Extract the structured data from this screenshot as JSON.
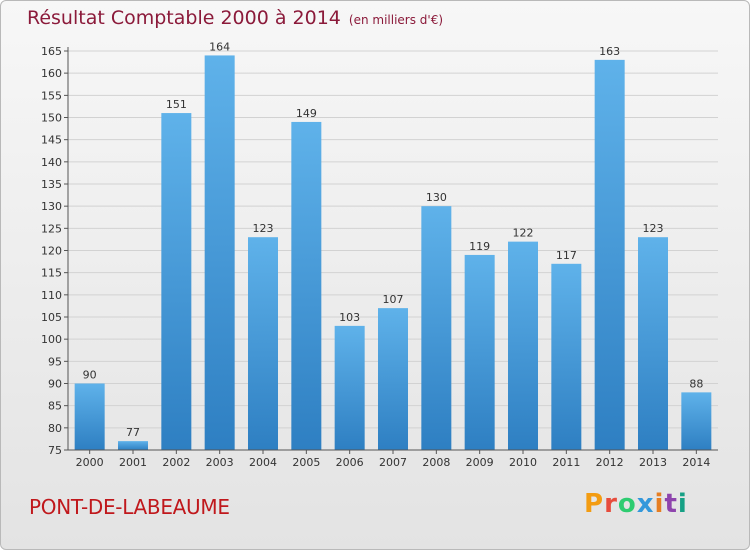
{
  "header": {
    "title": "Résultat Comptable 2000 à 2014",
    "unit_note": "(en milliers d'€)"
  },
  "footer": {
    "place_name": "PONT-DE-LABEAUME",
    "logo_text": "Proxiti",
    "logo_colors": [
      "#f39c12",
      "#e74c3c",
      "#2ecc71",
      "#3498db",
      "#e67e22",
      "#8e44ad",
      "#16a085"
    ]
  },
  "colors": {
    "bar_top": "#5fb2ea",
    "bar_bottom": "#2e7fc2",
    "title": "#8b1a3a",
    "place": "#c0181c"
  },
  "chart_data": {
    "type": "bar",
    "categories": [
      "2000",
      "2001",
      "2002",
      "2003",
      "2004",
      "2005",
      "2006",
      "2007",
      "2008",
      "2009",
      "2010",
      "2011",
      "2012",
      "2013",
      "2014"
    ],
    "values": [
      90,
      77,
      151,
      164,
      123,
      149,
      103,
      107,
      130,
      119,
      122,
      117,
      163,
      123,
      88
    ],
    "ylim": [
      75,
      165
    ],
    "yticks": [
      75,
      80,
      85,
      90,
      95,
      100,
      105,
      110,
      115,
      120,
      125,
      130,
      135,
      140,
      145,
      150,
      155,
      160,
      165
    ],
    "grid": true
  }
}
